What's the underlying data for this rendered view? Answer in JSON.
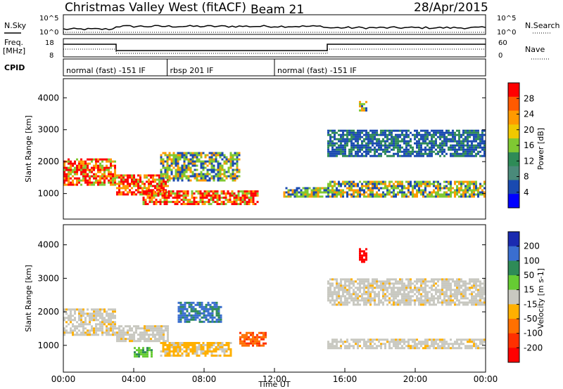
{
  "header": {
    "station": "Christmas Valley West (fitACF)",
    "beam": "Beam 21",
    "date": "28/Apr/2015"
  },
  "status_panels": {
    "nsky_label": "N.Sky",
    "nsearch_label": "N.Search",
    "noise_ticks": [
      "10^5",
      "10^0"
    ],
    "freq_label": "Freq.",
    "freq_unit": "[MHz]",
    "freq_ticks": [
      "18",
      "8"
    ],
    "nave_label": "Nave",
    "nave_ticks": [
      "60",
      "0"
    ],
    "cpid_label": "CPID",
    "cpid_segments": [
      {
        "name": "normal (fast) -151 IF",
        "start_hour": 0,
        "end_hour": 5.9
      },
      {
        "name": "rbsp 201 IF",
        "start_hour": 5.9,
        "end_hour": 12
      },
      {
        "name": "normal (fast) -151 IF",
        "start_hour": 12,
        "end_hour": 24
      }
    ]
  },
  "chart_data": [
    {
      "type": "heatmap",
      "name": "power",
      "ylabel": "Slant Range [km]",
      "xlabel": "",
      "xlim": [
        0,
        24
      ],
      "ylim": [
        200,
        4600
      ],
      "y_ticks": [
        "4000",
        "3000",
        "2000",
        "1000"
      ],
      "colorbar": {
        "label": "Power [dB]",
        "ticks": [
          "28",
          "24",
          "20",
          "16",
          "12",
          "8",
          "4"
        ],
        "colors": [
          "#ff0000",
          "#ff5a00",
          "#ff9a00",
          "#f0c800",
          "#7fc832",
          "#2e8b57",
          "#4a8a7a",
          "#1a4ab0",
          "#0000ff"
        ]
      },
      "regions": [
        {
          "t0": 0.0,
          "t1": 3.0,
          "r0": 1300,
          "r1": 2100,
          "level": "high"
        },
        {
          "t0": 3.0,
          "t1": 6.0,
          "r0": 950,
          "r1": 1600,
          "level": "high"
        },
        {
          "t0": 4.5,
          "t1": 11.0,
          "r0": 650,
          "r1": 1100,
          "level": "high"
        },
        {
          "t0": 5.5,
          "t1": 10.0,
          "r0": 1400,
          "r1": 2300,
          "level": "medium"
        },
        {
          "t0": 12.5,
          "t1": 15.0,
          "r0": 900,
          "r1": 1200,
          "level": "medium"
        },
        {
          "t0": 15.0,
          "t1": 24.0,
          "r0": 900,
          "r1": 1400,
          "level": "medium"
        },
        {
          "t0": 15.0,
          "t1": 24.0,
          "r0": 2200,
          "r1": 3000,
          "level": "low"
        },
        {
          "t0": 16.8,
          "t1": 17.2,
          "r0": 3600,
          "r1": 3900,
          "level": "medium"
        }
      ]
    },
    {
      "type": "heatmap",
      "name": "velocity",
      "ylabel": "Slant Range [km]",
      "xlabel": "Time UT",
      "xlim": [
        0,
        24
      ],
      "ylim": [
        200,
        4600
      ],
      "x_ticks": [
        "00:00",
        "04:00",
        "08:00",
        "12:00",
        "16:00",
        "20:00",
        "00:00"
      ],
      "y_ticks": [
        "4000",
        "3000",
        "2000",
        "1000"
      ],
      "colorbar": {
        "label": "Velocity [m s-1]",
        "ticks": [
          "200",
          "100",
          "50",
          "15",
          "-15",
          "-50",
          "-100",
          "-200"
        ],
        "colors": [
          "#1a2ab0",
          "#3a6ed0",
          "#2e8b57",
          "#66cc33",
          "#c8c8c0",
          "#ffb000",
          "#ff7000",
          "#ff3000",
          "#ff0000"
        ]
      },
      "regions": [
        {
          "t0": 0.0,
          "t1": 3.0,
          "r0": 1300,
          "r1": 2100,
          "velocity": 0
        },
        {
          "t0": 3.0,
          "t1": 6.0,
          "r0": 1100,
          "r1": 1600,
          "velocity": 0
        },
        {
          "t0": 4.0,
          "t1": 5.0,
          "r0": 650,
          "r1": 950,
          "velocity": 60
        },
        {
          "t0": 5.5,
          "t1": 9.5,
          "r0": 700,
          "r1": 1100,
          "velocity": -30
        },
        {
          "t0": 6.5,
          "t1": 9.0,
          "r0": 1700,
          "r1": 2300,
          "velocity": 100
        },
        {
          "t0": 10.0,
          "t1": 11.5,
          "r0": 1000,
          "r1": 1400,
          "velocity": -120
        },
        {
          "t0": 15.0,
          "t1": 24.0,
          "r0": 900,
          "r1": 1200,
          "velocity": 0
        },
        {
          "t0": 15.0,
          "t1": 24.0,
          "r0": 2200,
          "r1": 3000,
          "velocity": 0
        },
        {
          "t0": 16.8,
          "t1": 17.2,
          "r0": 3500,
          "r1": 3900,
          "velocity": -250
        }
      ]
    }
  ]
}
